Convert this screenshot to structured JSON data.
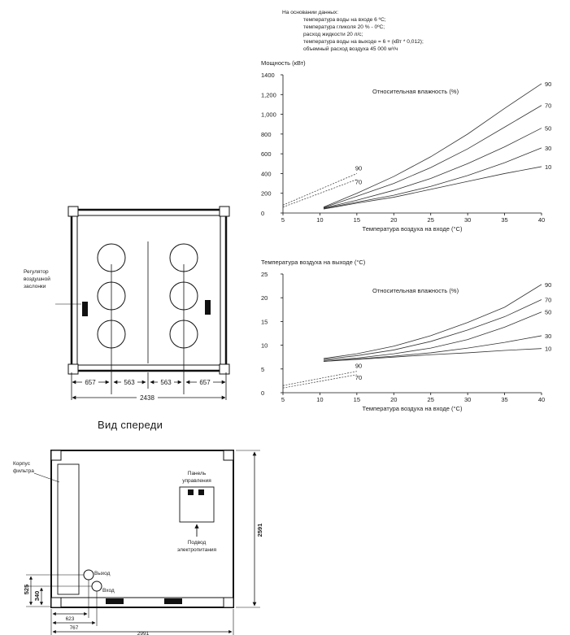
{
  "notes": {
    "heading": "На основании данных:",
    "lines": [
      "температура воды на входе 6 ºC;",
      "температура гликоля 20 % - 0ºC;",
      "расход жидкости 20 л/с;",
      "температура воды на выходе = 6 + (кВт * 0,012);",
      "объемный расход воздуха 45 000 м³/ч"
    ]
  },
  "chart_data": [
    {
      "type": "line",
      "title": "",
      "ylabel": "Мощность (кВт)",
      "xlabel": "Температура воздуха на входе (°C)",
      "annotation": "Относительная влажность (%)",
      "xlim": [
        5,
        40
      ],
      "ylim": [
        0,
        1400
      ],
      "xticks": [
        "5",
        "10",
        "15",
        "20",
        "25",
        "30",
        "35",
        "40"
      ],
      "yticks": [
        "0",
        "200",
        "400",
        "600",
        "800",
        "1,000",
        "1,200",
        "1400"
      ],
      "grid": false,
      "series": [
        {
          "name": "90",
          "x": [
            10.5,
            15,
            20,
            25,
            30,
            35,
            40
          ],
          "y": [
            60,
            200,
            370,
            570,
            800,
            1060,
            1310
          ]
        },
        {
          "name": "70",
          "x": [
            10.5,
            15,
            20,
            25,
            30,
            35,
            40
          ],
          "y": [
            55,
            170,
            300,
            460,
            650,
            870,
            1090
          ]
        },
        {
          "name": "50",
          "x": [
            10.5,
            15,
            20,
            25,
            30,
            35,
            40
          ],
          "y": [
            50,
            130,
            230,
            350,
            500,
            670,
            860
          ]
        },
        {
          "name": "30",
          "x": [
            10.5,
            15,
            20,
            25,
            30,
            35,
            40
          ],
          "y": [
            45,
            110,
            180,
            270,
            380,
            510,
            660
          ]
        },
        {
          "name": "10",
          "x": [
            10.5,
            15,
            20,
            25,
            30,
            35,
            40
          ],
          "y": [
            40,
            100,
            160,
            240,
            320,
            400,
            470
          ]
        }
      ],
      "dashed_series": [
        {
          "name": "90",
          "x": [
            5,
            15
          ],
          "y": [
            80,
            400
          ]
        },
        {
          "name": "70",
          "x": [
            5,
            15
          ],
          "y": [
            60,
            340
          ]
        }
      ]
    },
    {
      "type": "line",
      "title": "",
      "ylabel": "Температура воздуха на выходе (°C)",
      "xlabel": "Температура воздуха на входе (°C)",
      "annotation": "Относительная влажность (%)",
      "xlim": [
        5,
        40
      ],
      "ylim": [
        0,
        25
      ],
      "xticks": [
        "5",
        "10",
        "15",
        "20",
        "25",
        "30",
        "35",
        "40"
      ],
      "yticks": [
        "0",
        "5",
        "10",
        "15",
        "20",
        "25"
      ],
      "grid": false,
      "series": [
        {
          "name": "90",
          "x": [
            10.5,
            15,
            20,
            25,
            30,
            35,
            40
          ],
          "y": [
            7.2,
            8.2,
            9.8,
            12,
            14.8,
            18,
            22.8
          ]
        },
        {
          "name": "70",
          "x": [
            10.5,
            15,
            20,
            25,
            30,
            35,
            40
          ],
          "y": [
            7,
            7.8,
            9,
            10.8,
            13.2,
            16,
            19.6
          ]
        },
        {
          "name": "50",
          "x": [
            10.5,
            15,
            20,
            25,
            30,
            35,
            40
          ],
          "y": [
            6.8,
            7.3,
            8.2,
            9.4,
            11.2,
            13.8,
            17
          ]
        },
        {
          "name": "30",
          "x": [
            10.5,
            15,
            20,
            25,
            30,
            35,
            40
          ],
          "y": [
            6.6,
            7.1,
            7.7,
            8.4,
            9.4,
            10.6,
            12
          ]
        },
        {
          "name": "10",
          "x": [
            10.5,
            15,
            20,
            25,
            30,
            35,
            40
          ],
          "y": [
            6.6,
            7,
            7.5,
            8,
            8.4,
            8.9,
            9.3
          ]
        }
      ],
      "dashed_series": [
        {
          "name": "90",
          "x": [
            5,
            15
          ],
          "y": [
            1.5,
            4.5
          ]
        },
        {
          "name": "70",
          "x": [
            5,
            15
          ],
          "y": [
            1.0,
            3.8
          ]
        }
      ]
    }
  ],
  "top_view": {
    "damper_label": [
      "Регулятор",
      "воздушной",
      "заслонки"
    ],
    "dims": [
      "657",
      "563",
      "563",
      "657"
    ],
    "total": "2438"
  },
  "front_view": {
    "title": "Вид спереди",
    "filter_label": [
      "Корпус",
      "фильтра"
    ],
    "panel_label": [
      "Панель",
      "управления"
    ],
    "power_label": [
      "Подвод",
      "электропитания"
    ],
    "outlet_label": "Выход",
    "inlet_label": "Вход",
    "height_dim": "2591",
    "dim_525": "525",
    "dim_340": "340",
    "dim_623": "623",
    "dim_767": "767",
    "dim_width": "2991"
  }
}
